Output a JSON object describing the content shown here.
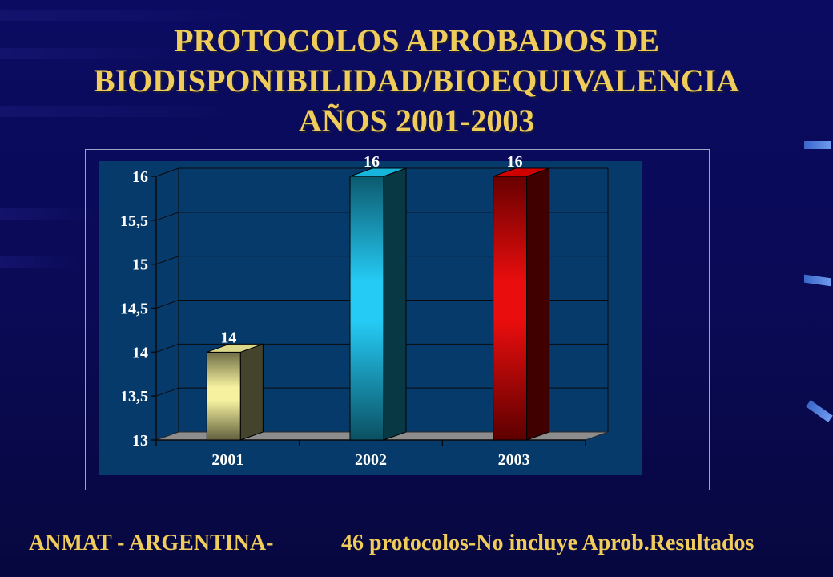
{
  "title": {
    "line1": "PROTOCOLOS APROBADOS DE",
    "line2": "BIODISPONIBILIDAD/BIOEQUIVALENCIA",
    "line3": "AÑOS 2001-2003"
  },
  "chart_data": {
    "type": "bar",
    "title": "PROTOCOLOS APROBADOS DE BIODISPONIBILIDAD/BIOEQUIVALENCIA AÑOS 2001-2003",
    "xlabel": "",
    "ylabel": "",
    "categories": [
      "2001",
      "2002",
      "2003"
    ],
    "values": [
      14,
      16,
      16
    ],
    "data_labels": [
      "14",
      "16",
      "16"
    ],
    "ylim": [
      13,
      16
    ],
    "y_ticks": [
      13,
      13.5,
      14,
      14.5,
      15,
      15.5,
      16
    ],
    "y_tick_labels": [
      "13",
      "13,5",
      "14",
      "14,5",
      "15",
      "15,5",
      "16"
    ],
    "grid": true,
    "legend": "none",
    "colors": [
      "#f4f09a",
      "#1ac8f4",
      "#e80000"
    ],
    "plot_background": "#063a6a"
  },
  "footer": {
    "left": "ANMAT - ARGENTINA-",
    "right": "46 protocolos-No incluye Aprob.Resultados"
  }
}
